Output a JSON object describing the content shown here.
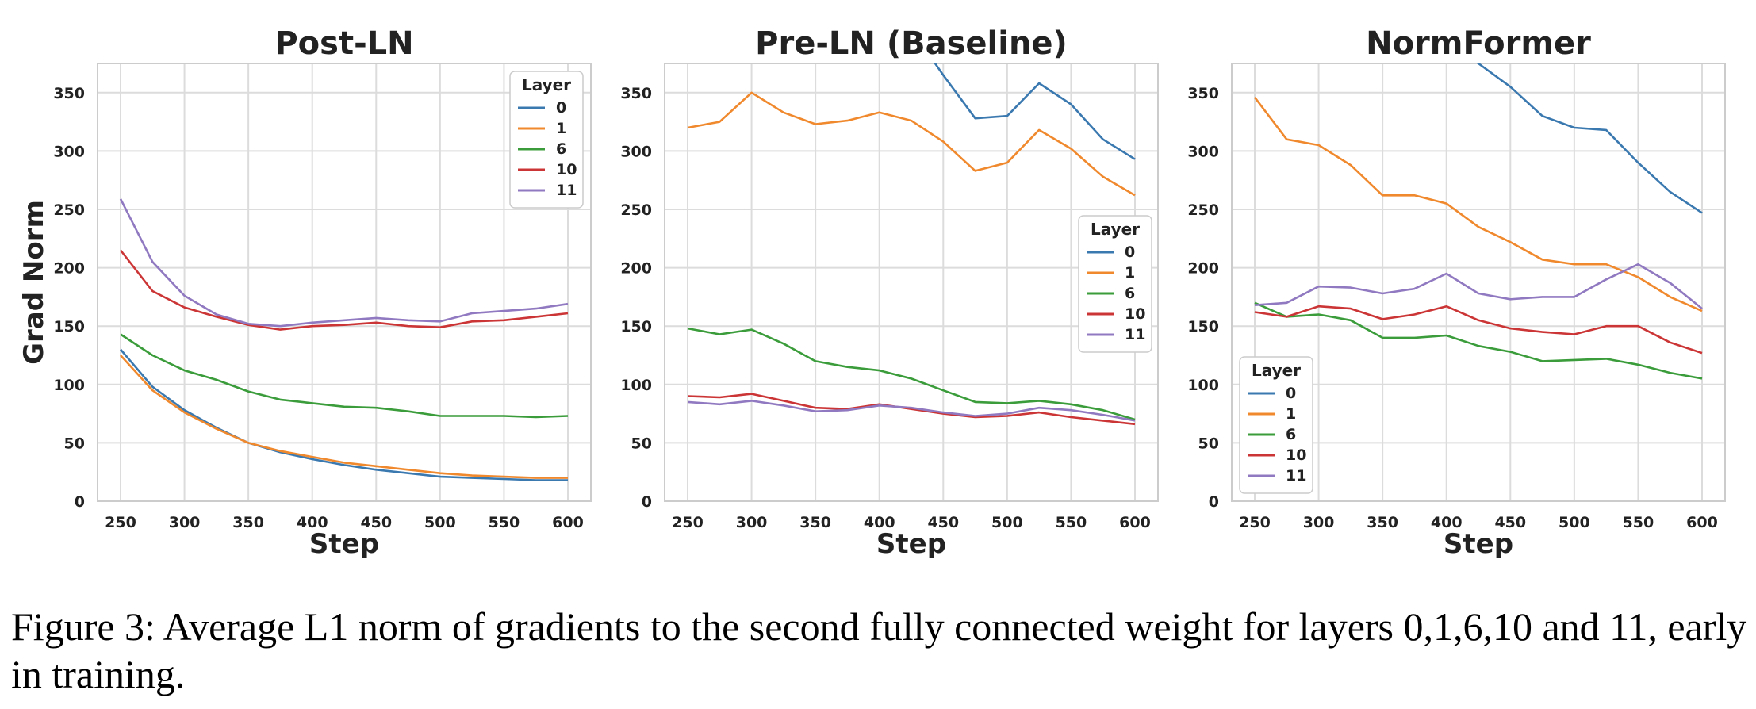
{
  "figure": {
    "caption": "Figure 3: Average L1 norm of gradients to the second fully connected weight for layers 0,1,6,10 and 11, early in training."
  },
  "colors": {
    "0": "#3a78b0",
    "1": "#f0892e",
    "6": "#3a9c3a",
    "10": "#cc3535",
    "11": "#9079c0"
  },
  "chart_data": [
    {
      "type": "line",
      "title": "Post-LN",
      "xlabel": "Step",
      "ylabel": "Grad Norm",
      "xlim": [
        232,
        618
      ],
      "ylim": [
        0,
        375
      ],
      "xticks": [
        250,
        300,
        350,
        400,
        450,
        500,
        550,
        600
      ],
      "yticks": [
        0,
        50,
        100,
        150,
        200,
        250,
        300,
        350
      ],
      "grid": true,
      "legend": {
        "title": "Layer",
        "position": "top-right"
      },
      "x": [
        250,
        275,
        300,
        325,
        350,
        375,
        400,
        425,
        450,
        475,
        500,
        525,
        550,
        575,
        600
      ],
      "series": [
        {
          "name": "0",
          "values": [
            130,
            98,
            78,
            63,
            50,
            42,
            36,
            31,
            27,
            24,
            21,
            20,
            19,
            18,
            18
          ]
        },
        {
          "name": "1",
          "values": [
            125,
            95,
            76,
            62,
            50,
            43,
            38,
            33,
            30,
            27,
            24,
            22,
            21,
            20,
            20
          ]
        },
        {
          "name": "6",
          "values": [
            143,
            125,
            112,
            104,
            94,
            87,
            84,
            81,
            80,
            77,
            73,
            73,
            73,
            72,
            73
          ]
        },
        {
          "name": "10",
          "values": [
            215,
            180,
            166,
            158,
            151,
            147,
            150,
            151,
            153,
            150,
            149,
            154,
            155,
            158,
            161
          ]
        },
        {
          "name": "11",
          "values": [
            259,
            205,
            176,
            160,
            152,
            150,
            153,
            155,
            157,
            155,
            154,
            161,
            163,
            165,
            169
          ]
        }
      ]
    },
    {
      "type": "line",
      "title": "Pre-LN (Baseline)",
      "xlabel": "Step",
      "ylabel": "",
      "xlim": [
        232,
        618
      ],
      "ylim": [
        0,
        375
      ],
      "xticks": [
        250,
        300,
        350,
        400,
        450,
        500,
        550,
        600
      ],
      "yticks": [
        0,
        50,
        100,
        150,
        200,
        250,
        300,
        350
      ],
      "grid": true,
      "legend": {
        "title": "Layer",
        "position": "center-right"
      },
      "x": [
        250,
        275,
        300,
        325,
        350,
        375,
        400,
        425,
        450,
        475,
        500,
        525,
        550,
        575,
        600
      ],
      "series": [
        {
          "name": "0",
          "values": [
            null,
            null,
            null,
            null,
            null,
            null,
            null,
            null,
            365,
            328,
            330,
            358,
            340,
            310,
            293
          ]
        },
        {
          "name": "1",
          "values": [
            320,
            325,
            350,
            333,
            323,
            326,
            333,
            326,
            308,
            283,
            290,
            318,
            302,
            278,
            262
          ]
        },
        {
          "name": "6",
          "values": [
            148,
            143,
            147,
            135,
            120,
            115,
            112,
            105,
            95,
            85,
            84,
            86,
            83,
            78,
            70
          ]
        },
        {
          "name": "10",
          "values": [
            90,
            89,
            92,
            86,
            80,
            79,
            83,
            79,
            75,
            72,
            73,
            76,
            72,
            69,
            66
          ]
        },
        {
          "name": "11",
          "values": [
            85,
            83,
            86,
            82,
            77,
            78,
            82,
            80,
            76,
            73,
            75,
            80,
            78,
            74,
            69
          ]
        }
      ]
    },
    {
      "type": "line",
      "title": "NormFormer",
      "xlabel": "Step",
      "ylabel": "",
      "xlim": [
        232,
        618
      ],
      "ylim": [
        0,
        375
      ],
      "xticks": [
        250,
        300,
        350,
        400,
        450,
        500,
        550,
        600
      ],
      "yticks": [
        0,
        50,
        100,
        150,
        200,
        250,
        300,
        350
      ],
      "grid": true,
      "legend": {
        "title": "Layer",
        "position": "bottom-left"
      },
      "x": [
        250,
        275,
        300,
        325,
        350,
        375,
        400,
        425,
        450,
        475,
        500,
        525,
        550,
        575,
        600
      ],
      "series": [
        {
          "name": "0",
          "values": [
            null,
            null,
            null,
            null,
            null,
            null,
            null,
            375,
            355,
            330,
            320,
            318,
            290,
            265,
            247
          ]
        },
        {
          "name": "1",
          "values": [
            346,
            310,
            305,
            288,
            262,
            262,
            255,
            235,
            222,
            207,
            203,
            203,
            192,
            175,
            163
          ]
        },
        {
          "name": "6",
          "values": [
            170,
            158,
            160,
            155,
            140,
            140,
            142,
            133,
            128,
            120,
            121,
            122,
            117,
            110,
            105
          ]
        },
        {
          "name": "10",
          "values": [
            162,
            158,
            167,
            165,
            156,
            160,
            167,
            155,
            148,
            145,
            143,
            150,
            150,
            136,
            127
          ]
        },
        {
          "name": "11",
          "values": [
            168,
            170,
            184,
            183,
            178,
            182,
            195,
            178,
            173,
            175,
            175,
            190,
            203,
            187,
            165
          ]
        }
      ]
    }
  ]
}
